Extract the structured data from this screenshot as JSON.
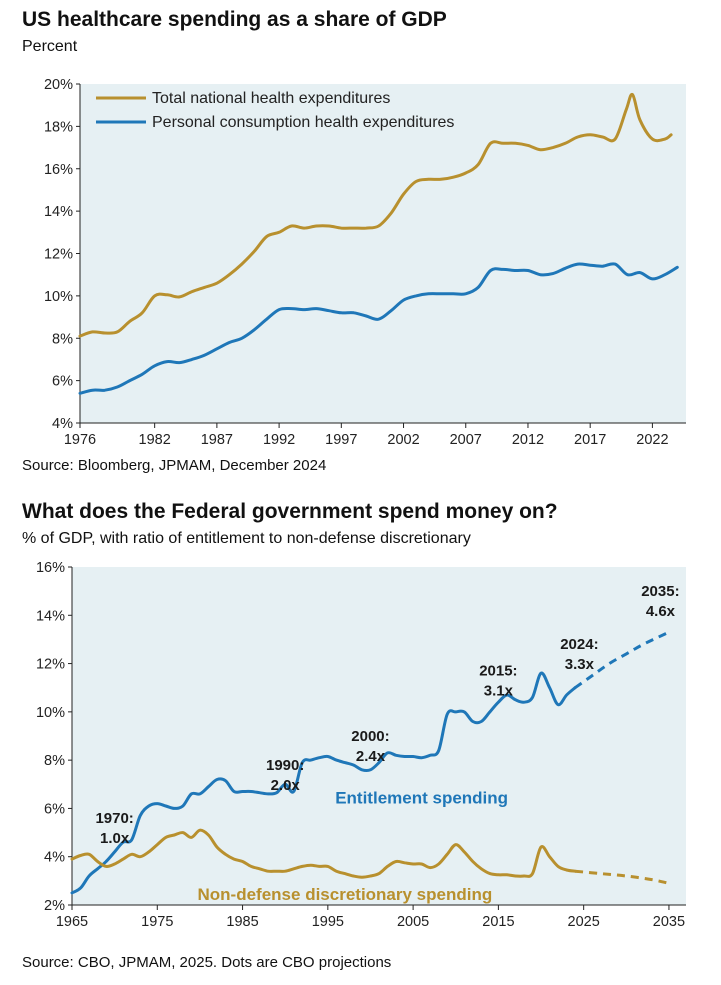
{
  "colors": {
    "gold": "#b8902e",
    "blue": "#1f77b8",
    "plot_bg": "#e6f0f3"
  },
  "chart_data": [
    {
      "type": "line",
      "title": "US healthcare spending as a share of GDP",
      "subtitle": "Percent",
      "source": "Source: Bloomberg, JPMAM, December 2024",
      "xlim": [
        1976,
        2024.7
      ],
      "ylim": [
        4,
        20
      ],
      "xticks": [
        1976,
        1982,
        1987,
        1992,
        1997,
        2002,
        2007,
        2012,
        2017,
        2022
      ],
      "yticks": [
        4,
        6,
        8,
        10,
        12,
        14,
        16,
        18,
        20
      ],
      "ytick_labels": [
        "4%",
        "6%",
        "8%",
        "10%",
        "12%",
        "14%",
        "16%",
        "18%",
        "20%"
      ],
      "legend_position": "top-left",
      "series": [
        {
          "name": "Total national health expenditures",
          "color": "gold",
          "points": [
            [
              1976,
              8.1
            ],
            [
              1977,
              8.3
            ],
            [
              1978,
              8.25
            ],
            [
              1979,
              8.3
            ],
            [
              1980,
              8.8
            ],
            [
              1981,
              9.2
            ],
            [
              1982,
              10.0
            ],
            [
              1983,
              10.05
            ],
            [
              1984,
              9.95
            ],
            [
              1985,
              10.2
            ],
            [
              1986,
              10.4
            ],
            [
              1987,
              10.6
            ],
            [
              1988,
              11.0
            ],
            [
              1989,
              11.5
            ],
            [
              1990,
              12.1
            ],
            [
              1991,
              12.8
            ],
            [
              1992,
              13.0
            ],
            [
              1993,
              13.3
            ],
            [
              1994,
              13.2
            ],
            [
              1995,
              13.3
            ],
            [
              1996,
              13.3
            ],
            [
              1997,
              13.2
            ],
            [
              1998,
              13.2
            ],
            [
              1999,
              13.2
            ],
            [
              2000,
              13.3
            ],
            [
              2001,
              13.9
            ],
            [
              2002,
              14.8
            ],
            [
              2003,
              15.4
            ],
            [
              2004,
              15.5
            ],
            [
              2005,
              15.5
            ],
            [
              2006,
              15.6
            ],
            [
              2007,
              15.8
            ],
            [
              2008,
              16.2
            ],
            [
              2009,
              17.2
            ],
            [
              2010,
              17.2
            ],
            [
              2011,
              17.2
            ],
            [
              2012,
              17.1
            ],
            [
              2013,
              16.9
            ],
            [
              2014,
              17.0
            ],
            [
              2015,
              17.2
            ],
            [
              2016,
              17.5
            ],
            [
              2017,
              17.6
            ],
            [
              2018,
              17.5
            ],
            [
              2019,
              17.4
            ],
            [
              2019.9,
              18.8
            ],
            [
              2020.4,
              19.5
            ],
            [
              2021,
              18.3
            ],
            [
              2022,
              17.4
            ],
            [
              2023,
              17.4
            ],
            [
              2023.5,
              17.6
            ]
          ]
        },
        {
          "name": "Personal consumption health expenditures",
          "color": "blue",
          "points": [
            [
              1976,
              5.4
            ],
            [
              1977,
              5.55
            ],
            [
              1978,
              5.55
            ],
            [
              1979,
              5.7
            ],
            [
              1980,
              6.0
            ],
            [
              1981,
              6.3
            ],
            [
              1982,
              6.7
            ],
            [
              1983,
              6.9
            ],
            [
              1984,
              6.85
            ],
            [
              1985,
              7.0
            ],
            [
              1986,
              7.2
            ],
            [
              1987,
              7.5
            ],
            [
              1988,
              7.8
            ],
            [
              1989,
              8.0
            ],
            [
              1990,
              8.4
            ],
            [
              1991,
              8.9
            ],
            [
              1992,
              9.35
            ],
            [
              1993,
              9.4
            ],
            [
              1994,
              9.35
            ],
            [
              1995,
              9.4
            ],
            [
              1996,
              9.3
            ],
            [
              1997,
              9.2
            ],
            [
              1998,
              9.2
            ],
            [
              1999,
              9.05
            ],
            [
              2000,
              8.9
            ],
            [
              2001,
              9.3
            ],
            [
              2002,
              9.8
            ],
            [
              2003,
              10.0
            ],
            [
              2004,
              10.1
            ],
            [
              2005,
              10.1
            ],
            [
              2006,
              10.1
            ],
            [
              2007,
              10.1
            ],
            [
              2008,
              10.4
            ],
            [
              2009,
              11.2
            ],
            [
              2010,
              11.25
            ],
            [
              2011,
              11.2
            ],
            [
              2012,
              11.2
            ],
            [
              2013,
              11.0
            ],
            [
              2014,
              11.05
            ],
            [
              2015,
              11.3
            ],
            [
              2016,
              11.5
            ],
            [
              2017,
              11.45
            ],
            [
              2018,
              11.4
            ],
            [
              2019,
              11.5
            ],
            [
              2020,
              11.0
            ],
            [
              2021,
              11.1
            ],
            [
              2022,
              10.8
            ],
            [
              2023,
              11.0
            ],
            [
              2024,
              11.35
            ]
          ]
        }
      ]
    },
    {
      "type": "line",
      "title": "What does the Federal government spend money on?",
      "subtitle": "% of GDP, with ratio of entitlement to non-defense discretionary",
      "source": "Source: CBO, JPMAM, 2025. Dots are CBO projections",
      "xlim": [
        1965,
        2037
      ],
      "ylim": [
        2,
        16
      ],
      "xticks": [
        1965,
        1975,
        1985,
        1995,
        2005,
        2015,
        2025,
        2035
      ],
      "yticks": [
        2,
        4,
        6,
        8,
        10,
        12,
        14,
        16
      ],
      "ytick_labels": [
        "2%",
        "4%",
        "6%",
        "8%",
        "10%",
        "12%",
        "14%",
        "16%"
      ],
      "series": [
        {
          "name": "Entitlement spending",
          "color": "blue",
          "points": [
            [
              1965,
              2.5
            ],
            [
              1966,
              2.7
            ],
            [
              1967,
              3.2
            ],
            [
              1968,
              3.5
            ],
            [
              1969,
              3.8
            ],
            [
              1970,
              4.2
            ],
            [
              1971,
              4.6
            ],
            [
              1972,
              4.7
            ],
            [
              1973,
              5.7
            ],
            [
              1974,
              6.1
            ],
            [
              1975,
              6.2
            ],
            [
              1976,
              6.1
            ],
            [
              1977,
              6.0
            ],
            [
              1978,
              6.1
            ],
            [
              1979,
              6.6
            ],
            [
              1980,
              6.6
            ],
            [
              1981,
              6.9
            ],
            [
              1982,
              7.2
            ],
            [
              1983,
              7.15
            ],
            [
              1984,
              6.7
            ],
            [
              1985,
              6.7
            ],
            [
              1986,
              6.7
            ],
            [
              1987,
              6.65
            ],
            [
              1988,
              6.6
            ],
            [
              1989,
              6.65
            ],
            [
              1990,
              7.0
            ],
            [
              1991,
              6.7
            ],
            [
              1992,
              7.9
            ],
            [
              1993,
              8.0
            ],
            [
              1994,
              8.1
            ],
            [
              1995,
              8.15
            ],
            [
              1996,
              8.0
            ],
            [
              1997,
              7.9
            ],
            [
              1998,
              7.8
            ],
            [
              1999,
              7.6
            ],
            [
              2000,
              7.6
            ],
            [
              2001,
              7.9
            ],
            [
              2002,
              8.3
            ],
            [
              2003,
              8.2
            ],
            [
              2004,
              8.15
            ],
            [
              2005,
              8.15
            ],
            [
              2006,
              8.1
            ],
            [
              2007,
              8.2
            ],
            [
              2008,
              8.4
            ],
            [
              2009,
              9.9
            ],
            [
              2010,
              10.0
            ],
            [
              2011,
              10.0
            ],
            [
              2012,
              9.6
            ],
            [
              2013,
              9.6
            ],
            [
              2014,
              10.0
            ],
            [
              2015,
              10.4
            ],
            [
              2016,
              10.7
            ],
            [
              2017,
              10.5
            ],
            [
              2018,
              10.4
            ],
            [
              2019,
              10.6
            ],
            [
              2020,
              11.6
            ],
            [
              2021,
              11.0
            ],
            [
              2022,
              10.3
            ],
            [
              2023,
              10.7
            ],
            [
              2024,
              11.0
            ]
          ],
          "projection": [
            [
              2024,
              11.0
            ],
            [
              2026,
              11.5
            ],
            [
              2028,
              12.0
            ],
            [
              2030,
              12.4
            ],
            [
              2032,
              12.8
            ],
            [
              2035,
              13.3
            ]
          ]
        },
        {
          "name": "Non-defense discretionary spending",
          "color": "gold",
          "points": [
            [
              1965,
              3.9
            ],
            [
              1966,
              4.05
            ],
            [
              1967,
              4.1
            ],
            [
              1968,
              3.8
            ],
            [
              1969,
              3.6
            ],
            [
              1970,
              3.7
            ],
            [
              1971,
              3.9
            ],
            [
              1972,
              4.1
            ],
            [
              1973,
              4.0
            ],
            [
              1974,
              4.2
            ],
            [
              1975,
              4.5
            ],
            [
              1976,
              4.8
            ],
            [
              1977,
              4.9
            ],
            [
              1978,
              5.0
            ],
            [
              1979,
              4.8
            ],
            [
              1980,
              5.1
            ],
            [
              1981,
              4.9
            ],
            [
              1982,
              4.4
            ],
            [
              1983,
              4.1
            ],
            [
              1984,
              3.9
            ],
            [
              1985,
              3.8
            ],
            [
              1986,
              3.6
            ],
            [
              1987,
              3.5
            ],
            [
              1988,
              3.4
            ],
            [
              1989,
              3.4
            ],
            [
              1990,
              3.4
            ],
            [
              1991,
              3.5
            ],
            [
              1992,
              3.6
            ],
            [
              1993,
              3.65
            ],
            [
              1994,
              3.6
            ],
            [
              1995,
              3.6
            ],
            [
              1996,
              3.4
            ],
            [
              1997,
              3.3
            ],
            [
              1998,
              3.2
            ],
            [
              1999,
              3.15
            ],
            [
              2000,
              3.2
            ],
            [
              2001,
              3.3
            ],
            [
              2002,
              3.6
            ],
            [
              2003,
              3.8
            ],
            [
              2004,
              3.75
            ],
            [
              2005,
              3.7
            ],
            [
              2006,
              3.7
            ],
            [
              2007,
              3.55
            ],
            [
              2008,
              3.7
            ],
            [
              2009,
              4.1
            ],
            [
              2010,
              4.5
            ],
            [
              2011,
              4.2
            ],
            [
              2012,
              3.8
            ],
            [
              2013,
              3.5
            ],
            [
              2014,
              3.3
            ],
            [
              2015,
              3.25
            ],
            [
              2016,
              3.25
            ],
            [
              2017,
              3.2
            ],
            [
              2018,
              3.2
            ],
            [
              2019,
              3.3
            ],
            [
              2020,
              4.4
            ],
            [
              2021,
              4.0
            ],
            [
              2022,
              3.6
            ],
            [
              2023,
              3.45
            ],
            [
              2024,
              3.4
            ]
          ],
          "projection": [
            [
              2024,
              3.4
            ],
            [
              2027,
              3.3
            ],
            [
              2030,
              3.2
            ],
            [
              2033,
              3.05
            ],
            [
              2035,
              2.9
            ]
          ]
        }
      ],
      "annotations": [
        {
          "year": "1970:",
          "ratio": "1.0x",
          "x": 1970,
          "y": 5.4
        },
        {
          "year": "1990:",
          "ratio": "2.0x",
          "x": 1990,
          "y": 7.6
        },
        {
          "year": "2000:",
          "ratio": "2.4x",
          "x": 2000,
          "y": 8.8
        },
        {
          "year": "2015:",
          "ratio": "3.1x",
          "x": 2015,
          "y": 11.5
        },
        {
          "year": "2024:",
          "ratio": "3.3x",
          "x": 2024.5,
          "y": 12.6
        },
        {
          "year": "2035:",
          "ratio": "4.6x",
          "x": 2034,
          "y": 14.8
        }
      ]
    }
  ]
}
